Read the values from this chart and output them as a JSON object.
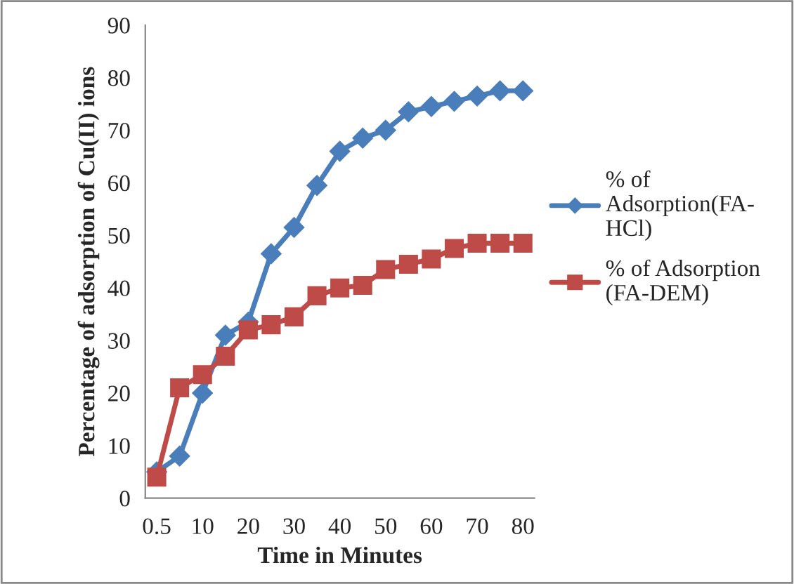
{
  "chart_data": {
    "type": "line",
    "xlabel": "Time in Minutes",
    "ylabel": "Percentage of adsorption of Cu(II) ions",
    "categories": [
      "0.5",
      null,
      "10",
      null,
      "20",
      null,
      "30",
      null,
      "40",
      null,
      "50",
      null,
      "60",
      null,
      "70",
      null,
      "80"
    ],
    "series": [
      {
        "name": "% of Adsorption(FA-HCl)",
        "color": "#4a7ebb",
        "marker": "diamond",
        "values": [
          5,
          8,
          20,
          31,
          33.5,
          46.5,
          51.5,
          59.5,
          66,
          68.5,
          70,
          73.5,
          74.5,
          75.5,
          76.5,
          77.5,
          77.5
        ]
      },
      {
        "name": "% of Adsorption (FA-DEM)",
        "color": "#be4b48",
        "marker": "square",
        "values": [
          4,
          21,
          23.5,
          27,
          32,
          33,
          34.5,
          38.5,
          40,
          40.5,
          43.5,
          44.5,
          45.5,
          47.5,
          48.5,
          48.5,
          48.5
        ]
      }
    ],
    "ylim": [
      0,
      90
    ],
    "yticks": [
      0,
      10,
      20,
      30,
      40,
      50,
      60,
      70,
      80,
      90
    ],
    "grid": false,
    "legend": "right",
    "line_style": "solid"
  }
}
